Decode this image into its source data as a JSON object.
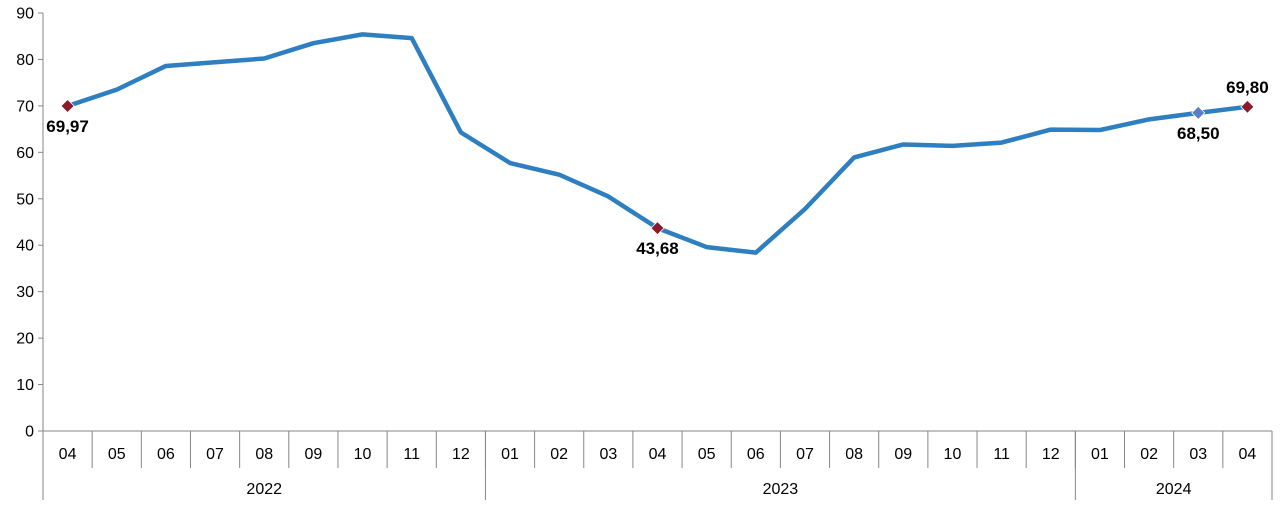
{
  "chart_data": {
    "type": "line",
    "categories": [
      "04",
      "05",
      "06",
      "07",
      "08",
      "09",
      "10",
      "11",
      "12",
      "01",
      "02",
      "03",
      "04",
      "05",
      "06",
      "07",
      "08",
      "09",
      "10",
      "11",
      "12",
      "01",
      "02",
      "03",
      "04"
    ],
    "groups": [
      {
        "label": "2022",
        "count": 9
      },
      {
        "label": "2023",
        "count": 12
      },
      {
        "label": "2024",
        "count": 4
      }
    ],
    "series": [
      {
        "values": [
          69.97,
          73.5,
          78.6,
          79.4,
          80.2,
          83.5,
          85.4,
          84.6,
          64.3,
          57.7,
          55.2,
          50.5,
          43.68,
          39.6,
          38.4,
          47.8,
          58.9,
          61.7,
          61.4,
          62.1,
          64.9,
          64.8,
          67.1,
          68.5,
          69.8
        ],
        "color": "#2e7fc1"
      }
    ],
    "markers": [
      {
        "index": 0,
        "label": "69,97",
        "color": "#8b1a2b",
        "position": "below"
      },
      {
        "index": 12,
        "label": "43,68",
        "color": "#8b1a2b",
        "position": "below"
      },
      {
        "index": 23,
        "label": "68,50",
        "color": "#5b7fc7",
        "position": "below"
      },
      {
        "index": 24,
        "label": "69,80",
        "color": "#8b1a2b",
        "position": "above"
      }
    ],
    "ylim": [
      0,
      90
    ],
    "yticks": [
      0,
      10,
      20,
      30,
      40,
      50,
      60,
      70,
      80,
      90
    ],
    "grid": false,
    "legend": false
  }
}
